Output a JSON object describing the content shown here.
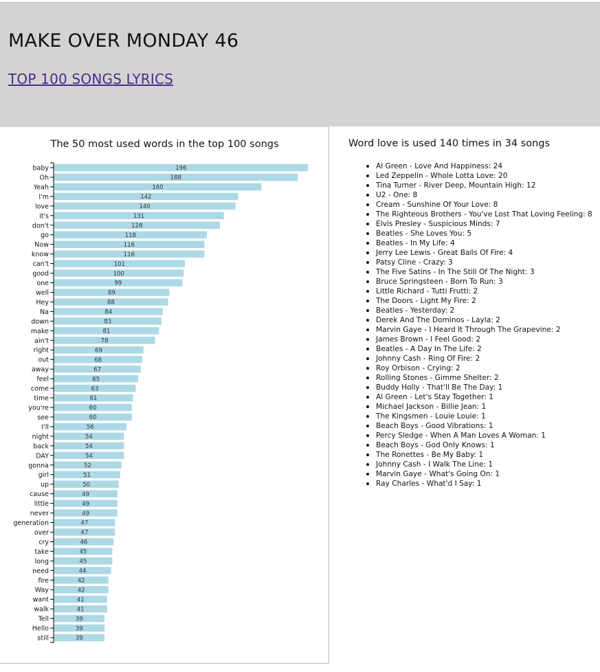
{
  "header": {
    "title": "MAKE OVER MONDAY 46",
    "link_label": "TOP 100 SONGS LYRICS"
  },
  "love_panel": {
    "title": "Word love is used 140 times in 34 songs",
    "songs": [
      "Al Green - Love And Happiness: 24",
      "Led Zeppelin - Whole Lotta Love: 20",
      "Tina Turner - River Deep, Mountain High: 12",
      "U2 - One: 8",
      "Cream - Sunshine Of Your Love: 8",
      "The Righteous Brothers - You've Lost That Loving Feeling: 8",
      "Elvis Presley - Suspicious Minds: 7",
      "Beatles - She Loves You: 5",
      "Beatles - In My Life: 4",
      "Jerry Lee Lewis - Great Balls Of Fire: 4",
      "Patsy Cline - Crazy: 3",
      "The Five Satins - In The Still Of The Night: 3",
      "Bruce Springsteen - Born To Run: 3",
      "Little Richard - Tutti Frutti: 2",
      "The Doors - Light My Fire: 2",
      "Beatles - Yesterday: 2",
      "Derek And The Dominos - Layla: 2",
      "Marvin Gaye - I Heard It Through The Grapevine: 2",
      "James Brown - I Feel Good: 2",
      "Beatles - A Day In The Life: 2",
      "Johnny Cash - Ring Of Fire: 2",
      "Roy Orbison - Crying: 2",
      "Rolling Stones - Gimme Shelter: 2",
      "Buddy Holly - That'll Be The Day: 1",
      "Al Green - Let's Stay Together: 1",
      "Michael Jackson - Billie Jean: 1",
      "The Kingsmen - Louie Louie: 1",
      "Beach Boys - Good Vibrations: 1",
      "Percy Sledge - When A Man Loves A Woman: 1",
      "Beach Boys - God Only Knows: 1",
      "The Ronettes - Be My Baby: 1",
      "Johnny Cash - I Walk The Line: 1",
      "Marvin Gaye - What's Going On: 1",
      "Ray Charles - What'd I Say: 1"
    ]
  },
  "chart_data": {
    "type": "bar",
    "orientation": "horizontal",
    "title": "The 50 most used words in the top 100 songs",
    "bar_color": "#add8e6",
    "xlim": [
      0,
      196
    ],
    "categories": [
      "baby",
      "Oh",
      "Yeah",
      "I'm",
      "love",
      "it's",
      "don't",
      "go",
      "Now",
      "know",
      "can't",
      "good",
      "one",
      "well",
      "Hey",
      "Na",
      "down",
      "make",
      "ain't",
      "right",
      "out",
      "away",
      "feel",
      "come",
      "time",
      "you're",
      "see",
      "I'll",
      "night",
      "back",
      "DAY",
      "gonna",
      "girl",
      "up",
      "cause",
      "little",
      "never",
      "generation",
      "over",
      "cry",
      "take",
      "long",
      "need",
      "fire",
      "Way",
      "want",
      "walk",
      "Tell",
      "Hello",
      "still"
    ],
    "values": [
      196,
      188,
      160,
      142,
      140,
      131,
      128,
      118,
      116,
      116,
      101,
      100,
      99,
      89,
      88,
      84,
      83,
      81,
      78,
      69,
      68,
      67,
      65,
      63,
      61,
      60,
      60,
      56,
      54,
      54,
      54,
      52,
      51,
      50,
      49,
      49,
      49,
      47,
      47,
      46,
      45,
      45,
      44,
      42,
      42,
      41,
      41,
      39,
      39,
      39
    ]
  }
}
